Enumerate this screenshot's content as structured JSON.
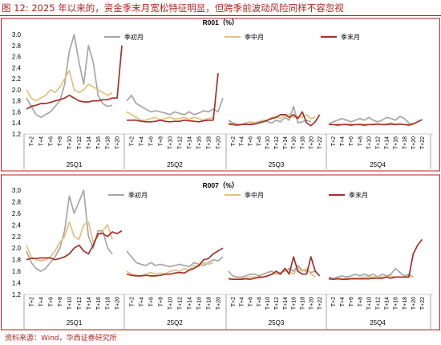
{
  "figure_title": "图 12:  2025 年以来的，资金季末月宽松特征明显，但跨季前波动风险同样不容忽视",
  "source": "资料来源：Wind，华西证券研究所",
  "colors": {
    "early": "#a6a6a6",
    "mid": "#e3c17e",
    "end": "#a3302a",
    "accent": "#b22222"
  },
  "chart_data": [
    {
      "type": "line",
      "title": "R001（%）",
      "ylim": [
        1.2,
        3.0
      ],
      "yticks": [
        "3.0",
        "2.8",
        "2.6",
        "2.4",
        "2.2",
        "2.0",
        "1.8",
        "1.6",
        "1.4",
        "1.2"
      ],
      "quarters": [
        {
          "label": "25Q1",
          "xticks": [
            "T+2",
            "T+4",
            "T+6",
            "T+8",
            "T+10",
            "T+12",
            "T+14",
            "T+16",
            "T+18",
            "T+20"
          ],
          "nmax": 21,
          "series": [
            {
              "name": "季初月",
              "values": [
                1.85,
                1.7,
                1.55,
                1.5,
                1.55,
                1.6,
                1.7,
                1.8,
                2.1,
                2.7,
                3.1,
                2.5,
                2.1,
                2.8,
                2.5,
                1.9,
                1.75,
                1.7,
                1.72
              ]
            },
            {
              "name": "季中月",
              "values": [
                2.0,
                1.85,
                1.8,
                1.85,
                1.9,
                2.0,
                1.95,
                2.05,
                2.2,
                2.35,
                2.0,
                1.95,
                2.0,
                2.1,
                2.05,
                2.0,
                1.95,
                1.9,
                1.95
              ]
            },
            {
              "name": "季末月",
              "values": [
                1.65,
                1.7,
                1.72,
                1.75,
                1.75,
                1.77,
                1.8,
                1.82,
                1.85,
                1.9,
                1.85,
                1.8,
                1.78,
                1.78,
                1.8,
                1.8,
                1.82,
                1.82,
                1.85,
                1.85,
                2.8
              ]
            }
          ]
        },
        {
          "label": "25Q2",
          "xticks": [
            "T+2",
            "T+4",
            "T+6",
            "T+8",
            "T+10",
            "T+12",
            "T+14",
            "T+16",
            "T+18",
            "T+20"
          ],
          "nmax": 21,
          "series": [
            {
              "name": "季初月",
              "values": [
                1.8,
                1.9,
                1.75,
                1.7,
                1.65,
                1.6,
                1.62,
                1.6,
                1.58,
                1.55,
                1.6,
                1.57,
                1.55,
                1.6,
                1.55,
                1.58,
                1.62,
                1.6,
                1.65,
                1.6,
                1.85
              ]
            },
            {
              "name": "季中月",
              "values": [
                1.6,
                1.55,
                1.5,
                1.45,
                1.45,
                1.48,
                1.5,
                1.45,
                1.48,
                1.5,
                1.47,
                1.48,
                1.5,
                1.47,
                1.5,
                1.48,
                1.45,
                1.48,
                1.5
              ]
            },
            {
              "name": "季末月",
              "values": [
                1.45,
                1.45,
                1.45,
                1.43,
                1.42,
                1.42,
                1.43,
                1.45,
                1.43,
                1.42,
                1.43,
                1.43,
                1.45,
                1.44,
                1.43,
                1.42,
                1.44,
                1.45,
                1.45,
                2.3
              ]
            }
          ]
        },
        {
          "label": "25Q3",
          "xticks": [
            "T+2",
            "T+4",
            "T+6",
            "T+8",
            "T+10",
            "T+12",
            "T+14",
            "T+16",
            "T+18",
            "T+20",
            "T+22"
          ],
          "nmax": 23,
          "series": [
            {
              "name": "季初月",
              "values": [
                1.45,
                1.4,
                1.38,
                1.37,
                1.37,
                1.38,
                1.4,
                1.42,
                1.45,
                1.42,
                1.4,
                1.45,
                1.42,
                1.5,
                1.45,
                1.7,
                1.4,
                1.42,
                1.45,
                1.42
              ]
            },
            {
              "name": "季中月",
              "values": [
                1.4,
                1.38,
                1.37,
                1.38,
                1.4,
                1.42,
                1.4,
                1.4,
                1.45,
                1.45,
                1.5,
                1.52,
                1.48,
                1.55,
                1.55,
                1.5,
                1.52,
                1.5,
                1.55,
                1.48,
                1.5
              ]
            },
            {
              "name": "季末月",
              "values": [
                1.38,
                1.37,
                1.36,
                1.37,
                1.38,
                1.37,
                1.38,
                1.4,
                1.42,
                1.45,
                1.48,
                1.5,
                1.55,
                1.55,
                1.5,
                1.55,
                1.48,
                1.6,
                1.4,
                1.35,
                1.42,
                1.55
              ]
            }
          ]
        },
        {
          "label": "25Q4",
          "xticks": [
            "T+2",
            "T+4",
            "T+6",
            "T+8",
            "T+10",
            "T+12",
            "T+14",
            "T+16",
            "T+18",
            "T+20",
            "T+22"
          ],
          "nmax": 23,
          "series": [
            {
              "name": "季初月",
              "values": [
                1.38,
                1.42,
                1.45,
                1.48,
                1.45,
                1.42,
                1.45,
                1.48,
                1.45,
                1.5,
                1.45,
                1.42,
                1.45,
                1.5,
                1.48,
                1.45,
                1.52,
                1.48,
                1.4,
                1.38
              ]
            },
            {
              "name": "季中月",
              "values": [
                1.38,
                1.37,
                1.38,
                1.37,
                1.38,
                1.38,
                1.37,
                1.38,
                1.38,
                1.37,
                1.38,
                1.38,
                1.37,
                1.38,
                1.4,
                1.38,
                1.38,
                1.37,
                1.38,
                1.4
              ]
            },
            {
              "name": "季末月",
              "values": [
                1.37,
                1.37,
                1.36,
                1.37,
                1.37,
                1.36,
                1.37,
                1.37,
                1.36,
                1.37,
                1.37,
                1.38,
                1.37,
                1.37,
                1.38,
                1.37,
                1.38,
                1.37,
                1.36,
                1.38,
                1.42,
                1.46
              ]
            }
          ]
        }
      ]
    },
    {
      "type": "line",
      "title": "R007（%）",
      "ylim": [
        1.2,
        3.0
      ],
      "yticks": [
        "3.0",
        "2.8",
        "2.6",
        "2.4",
        "2.2",
        "2.0",
        "1.8",
        "1.6",
        "1.4",
        "1.2"
      ],
      "quarters": [
        {
          "label": "25Q1",
          "xticks": [
            "T+2",
            "T+4",
            "T+6",
            "T+8",
            "T+10",
            "T+12",
            "T+14",
            "T+16",
            "T+18",
            "T+20"
          ],
          "nmax": 21,
          "series": [
            {
              "name": "季初月",
              "values": [
                1.95,
                1.75,
                1.65,
                1.6,
                1.65,
                1.75,
                1.85,
                2.0,
                2.3,
                2.9,
                2.6,
                2.8,
                3.0,
                2.2,
                2.0,
                2.3,
                2.3,
                2.0,
                1.9
              ]
            },
            {
              "name": "季中月",
              "values": [
                2.05,
                1.85,
                1.8,
                1.78,
                1.8,
                1.85,
                1.95,
                2.1,
                2.2,
                2.45,
                2.2,
                2.15,
                2.4,
                2.45,
                2.1,
                2.2,
                2.3,
                2.4,
                2.15
              ]
            },
            {
              "name": "季末月",
              "values": [
                1.8,
                1.82,
                1.82,
                1.83,
                1.83,
                1.83,
                1.8,
                1.82,
                1.85,
                1.9,
                2.0,
                2.05,
                1.95,
                1.9,
                2.05,
                2.25,
                2.25,
                2.2,
                2.28,
                2.25,
                2.3
              ]
            }
          ]
        },
        {
          "label": "25Q2",
          "xticks": [
            "T+2",
            "T+4",
            "T+6",
            "T+8",
            "T+10",
            "T+12",
            "T+14",
            "T+16",
            "T+18",
            "T+20"
          ],
          "nmax": 21,
          "series": [
            {
              "name": "季初月",
              "values": [
                1.95,
                1.85,
                1.75,
                1.72,
                1.7,
                1.75,
                1.7,
                1.72,
                1.7,
                1.68,
                1.7,
                1.72,
                1.7,
                1.68,
                1.75,
                1.72,
                1.7,
                1.75,
                1.8,
                1.78,
                1.85
              ]
            },
            {
              "name": "季中月",
              "values": [
                1.6,
                1.55,
                1.53,
                1.52,
                1.55,
                1.58,
                1.55,
                1.57,
                1.55,
                1.6,
                1.62,
                1.6,
                1.65,
                1.62,
                1.7,
                1.68,
                1.75,
                1.72,
                1.75
              ]
            },
            {
              "name": "季末月",
              "values": [
                1.55,
                1.53,
                1.52,
                1.52,
                1.53,
                1.52,
                1.52,
                1.53,
                1.55,
                1.55,
                1.57,
                1.58,
                1.57,
                1.62,
                1.65,
                1.7,
                1.8,
                1.82,
                1.9,
                1.95,
                2.0
              ]
            }
          ]
        },
        {
          "label": "25Q3",
          "xticks": [
            "T+2",
            "T+4",
            "T+6",
            "T+8",
            "T+10",
            "T+12",
            "T+14",
            "T+16",
            "T+18",
            "T+20",
            "T+22"
          ],
          "nmax": 23,
          "series": [
            {
              "name": "季初月",
              "values": [
                1.6,
                1.52,
                1.5,
                1.5,
                1.52,
                1.55,
                1.55,
                1.52,
                1.55,
                1.58,
                1.6,
                1.55,
                1.58,
                1.6,
                1.65,
                1.6,
                1.7,
                1.62,
                1.6,
                1.58,
                1.6
              ]
            },
            {
              "name": "季中月",
              "values": [
                1.48,
                1.47,
                1.47,
                1.48,
                1.48,
                1.5,
                1.5,
                1.48,
                1.5,
                1.52,
                1.55,
                1.55,
                1.55,
                1.65,
                1.6,
                1.55,
                1.65,
                1.6,
                1.65,
                1.55,
                1.5
              ]
            },
            {
              "name": "季末月",
              "values": [
                1.47,
                1.46,
                1.46,
                1.46,
                1.47,
                1.46,
                1.48,
                1.5,
                1.5,
                1.52,
                1.55,
                1.6,
                1.55,
                1.65,
                1.55,
                1.85,
                1.6,
                1.55,
                1.55,
                1.85,
                1.6,
                1.52
              ]
            }
          ]
        },
        {
          "label": "25Q4",
          "xticks": [
            "T+2",
            "T+4",
            "T+6",
            "T+8",
            "T+10",
            "T+12",
            "T+14",
            "T+16",
            "T+18",
            "T+20",
            "T+22"
          ],
          "nmax": 23,
          "series": [
            {
              "name": "季初月",
              "values": [
                1.5,
                1.48,
                1.5,
                1.52,
                1.5,
                1.52,
                1.55,
                1.52,
                1.55,
                1.52,
                1.55,
                1.5,
                1.55,
                1.52,
                1.55,
                1.65,
                1.58,
                1.52,
                1.55,
                1.5
              ]
            },
            {
              "name": "季中月",
              "values": [
                1.47,
                1.47,
                1.48,
                1.47,
                1.48,
                1.48,
                1.48,
                1.48,
                1.5,
                1.5,
                1.5,
                1.5,
                1.5,
                1.5,
                1.52,
                1.5,
                1.5,
                1.5,
                1.52,
                1.5
              ]
            },
            {
              "name": "季末月",
              "values": [
                1.47,
                1.46,
                1.47,
                1.46,
                1.46,
                1.47,
                1.47,
                1.47,
                1.47,
                1.47,
                1.48,
                1.48,
                1.48,
                1.5,
                1.48,
                1.5,
                1.5,
                1.5,
                1.5,
                1.9,
                2.05,
                2.15
              ]
            }
          ]
        }
      ]
    }
  ]
}
